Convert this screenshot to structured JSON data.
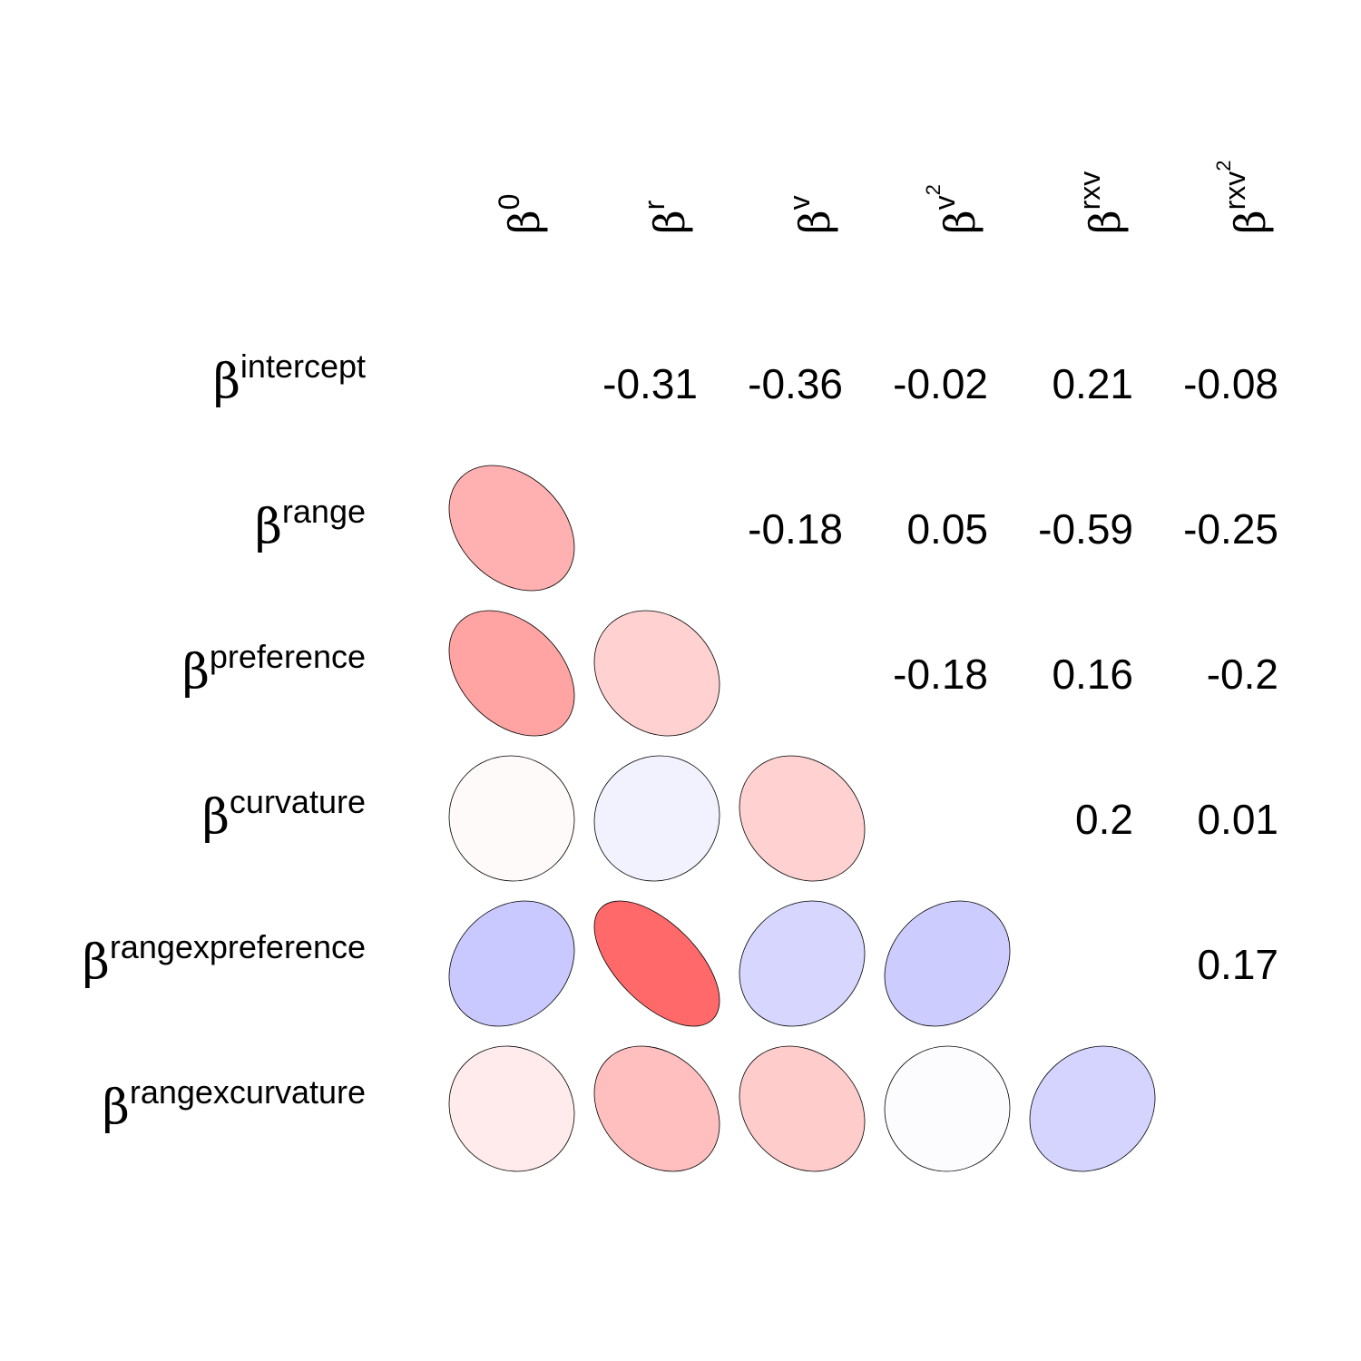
{
  "chart_data": {
    "type": "heatmap",
    "variant": "correlation-ellipse-matrix",
    "row_labels": [
      {
        "base": "β",
        "sup": "intercept"
      },
      {
        "base": "β",
        "sup": "range"
      },
      {
        "base": "β",
        "sup": "preference"
      },
      {
        "base": "β",
        "sup": "curvature"
      },
      {
        "base": "β",
        "sup": "rangexpreference"
      },
      {
        "base": "β",
        "sup": "rangexcurvature"
      }
    ],
    "col_labels": [
      {
        "base": "β",
        "sup": "0",
        "sup2": ""
      },
      {
        "base": "β",
        "sup": "r",
        "sup2": ""
      },
      {
        "base": "β",
        "sup": "v",
        "sup2": ""
      },
      {
        "base": "β",
        "sup": "v",
        "sup2": "2"
      },
      {
        "base": "β",
        "sup": "rxv",
        "sup2": ""
      },
      {
        "base": "β",
        "sup": "rxv",
        "sup2": "2"
      }
    ],
    "upper_triangle": [
      {
        "row": 0,
        "col": 1,
        "label": "-0.31"
      },
      {
        "row": 0,
        "col": 2,
        "label": "-0.36"
      },
      {
        "row": 0,
        "col": 3,
        "label": "-0.02"
      },
      {
        "row": 0,
        "col": 4,
        "label": "0.21"
      },
      {
        "row": 0,
        "col": 5,
        "label": "-0.08"
      },
      {
        "row": 1,
        "col": 2,
        "label": "-0.18"
      },
      {
        "row": 1,
        "col": 3,
        "label": "0.05"
      },
      {
        "row": 1,
        "col": 4,
        "label": "-0.59"
      },
      {
        "row": 1,
        "col": 5,
        "label": "-0.25"
      },
      {
        "row": 2,
        "col": 3,
        "label": "-0.18"
      },
      {
        "row": 2,
        "col": 4,
        "label": "0.16"
      },
      {
        "row": 2,
        "col": 5,
        "label": "-0.2"
      },
      {
        "row": 3,
        "col": 4,
        "label": "0.2"
      },
      {
        "row": 3,
        "col": 5,
        "label": "0.01"
      },
      {
        "row": 4,
        "col": 5,
        "label": "0.17"
      }
    ],
    "lower_triangle_ellipses": [
      {
        "row": 1,
        "col": 0,
        "value": -0.31
      },
      {
        "row": 2,
        "col": 0,
        "value": -0.36
      },
      {
        "row": 2,
        "col": 1,
        "value": -0.18
      },
      {
        "row": 3,
        "col": 0,
        "value": -0.02
      },
      {
        "row": 3,
        "col": 1,
        "value": 0.05
      },
      {
        "row": 3,
        "col": 2,
        "value": -0.18
      },
      {
        "row": 4,
        "col": 0,
        "value": 0.21
      },
      {
        "row": 4,
        "col": 1,
        "value": -0.59
      },
      {
        "row": 4,
        "col": 2,
        "value": 0.16
      },
      {
        "row": 4,
        "col": 3,
        "value": 0.2
      },
      {
        "row": 5,
        "col": 0,
        "value": -0.08
      },
      {
        "row": 5,
        "col": 1,
        "value": -0.25
      },
      {
        "row": 5,
        "col": 2,
        "value": -0.2
      },
      {
        "row": 5,
        "col": 3,
        "value": 0.01
      },
      {
        "row": 5,
        "col": 4,
        "value": 0.17
      }
    ],
    "value_range": [
      -1,
      1
    ],
    "colors": {
      "positive": "#0000FF",
      "negative": "#FF0000",
      "neutral": "#FFFFFF",
      "ellipse_stroke": "#000000",
      "text": "#000000"
    },
    "legend": "none",
    "grid": false
  }
}
